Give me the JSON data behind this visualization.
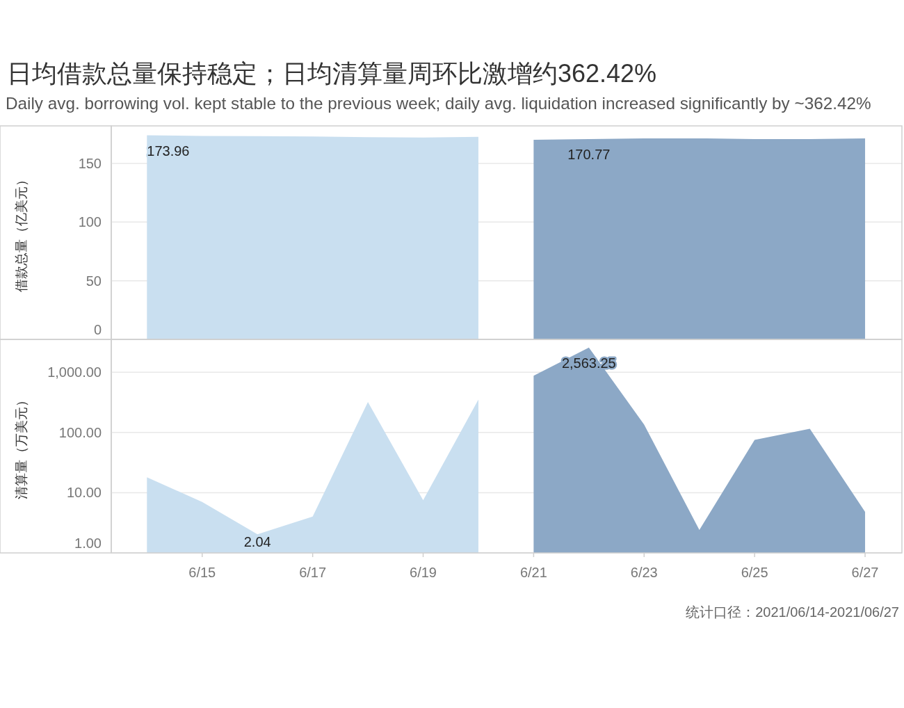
{
  "chart_data": [
    {
      "type": "area",
      "title": "日均借款总量保持稳定；日均清算量周环比激增约362.42%",
      "subtitle": "Daily avg. borrowing vol. kept stable to the previous week; daily avg. liquidation increased significantly by ~362.42%",
      "ylabel": "借款总量（亿美元）",
      "xlim": [
        "2021-06-13T08:30",
        "2021-06-27T16:00"
      ],
      "ylim": [
        0,
        182
      ],
      "yticks": [
        0,
        50,
        100,
        150
      ],
      "grid": "y",
      "tick_labels": "y",
      "series": [
        {
          "color": "#c9dff0",
          "x": [
            "2021-06-14",
            "2021-06-15",
            "2021-06-16",
            "2021-06-17",
            "2021-06-18",
            "2021-06-19",
            "2021-06-20"
          ],
          "values": [
            173.96,
            173.4,
            173.2,
            172.9,
            172.4,
            172.1,
            172.6
          ],
          "value_labels": [
            "173.96",
            null,
            null,
            null,
            null,
            null,
            null
          ]
        },
        {
          "color": "#8ca8c6",
          "x": [
            "2021-06-21",
            "2021-06-22",
            "2021-06-23",
            "2021-06-24",
            "2021-06-25",
            "2021-06-26",
            "2021-06-27"
          ],
          "values": [
            170.2,
            170.77,
            171.4,
            171.4,
            170.7,
            170.7,
            171.4
          ],
          "value_labels": [
            null,
            "170.77",
            null,
            null,
            null,
            null,
            null
          ]
        }
      ]
    },
    {
      "type": "area",
      "ylabel": "清算量（万美元）",
      "log": true,
      "xlim": [
        "2021-06-13T08:30",
        "2021-06-27T16:00"
      ],
      "xticks": [
        {
          "value": "2021-06-15",
          "label": "6/15"
        },
        {
          "value": "2021-06-17",
          "label": "6/17"
        },
        {
          "value": "2021-06-19",
          "label": "6/19"
        },
        {
          "value": "2021-06-21",
          "label": "6/21"
        },
        {
          "value": "2021-06-23",
          "label": "6/23"
        },
        {
          "value": "2021-06-25",
          "label": "6/25"
        },
        {
          "value": "2021-06-27",
          "label": "6/27"
        }
      ],
      "ylim": [
        1,
        3500
      ],
      "yticks": [
        {
          "value": 1,
          "label": "1.00"
        },
        {
          "value": 10,
          "label": "10.00"
        },
        {
          "value": 100,
          "label": "100.00"
        },
        {
          "value": 1000,
          "label": "1,000.00"
        }
      ],
      "grid": "y",
      "series": [
        {
          "color": "#c9dff0",
          "x": [
            "2021-06-14",
            "2021-06-15",
            "2021-06-16",
            "2021-06-17",
            "2021-06-18",
            "2021-06-19",
            "2021-06-20"
          ],
          "values": [
            18,
            7,
            2.04,
            4,
            320,
            7.5,
            350
          ],
          "value_labels": [
            null,
            null,
            "2.04",
            null,
            null,
            null,
            null
          ]
        },
        {
          "color": "#8ca8c6",
          "x": [
            "2021-06-21",
            "2021-06-22",
            "2021-06-23",
            "2021-06-24",
            "2021-06-25",
            "2021-06-26",
            "2021-06-27"
          ],
          "values": [
            870,
            2563.25,
            135,
            2.4,
            75,
            115,
            4.8
          ],
          "value_labels": [
            null,
            "2,563.25",
            null,
            null,
            null,
            null,
            null
          ]
        }
      ],
      "annotations": [
        "统计口径：2021/06/14-2021/06/27"
      ]
    }
  ]
}
